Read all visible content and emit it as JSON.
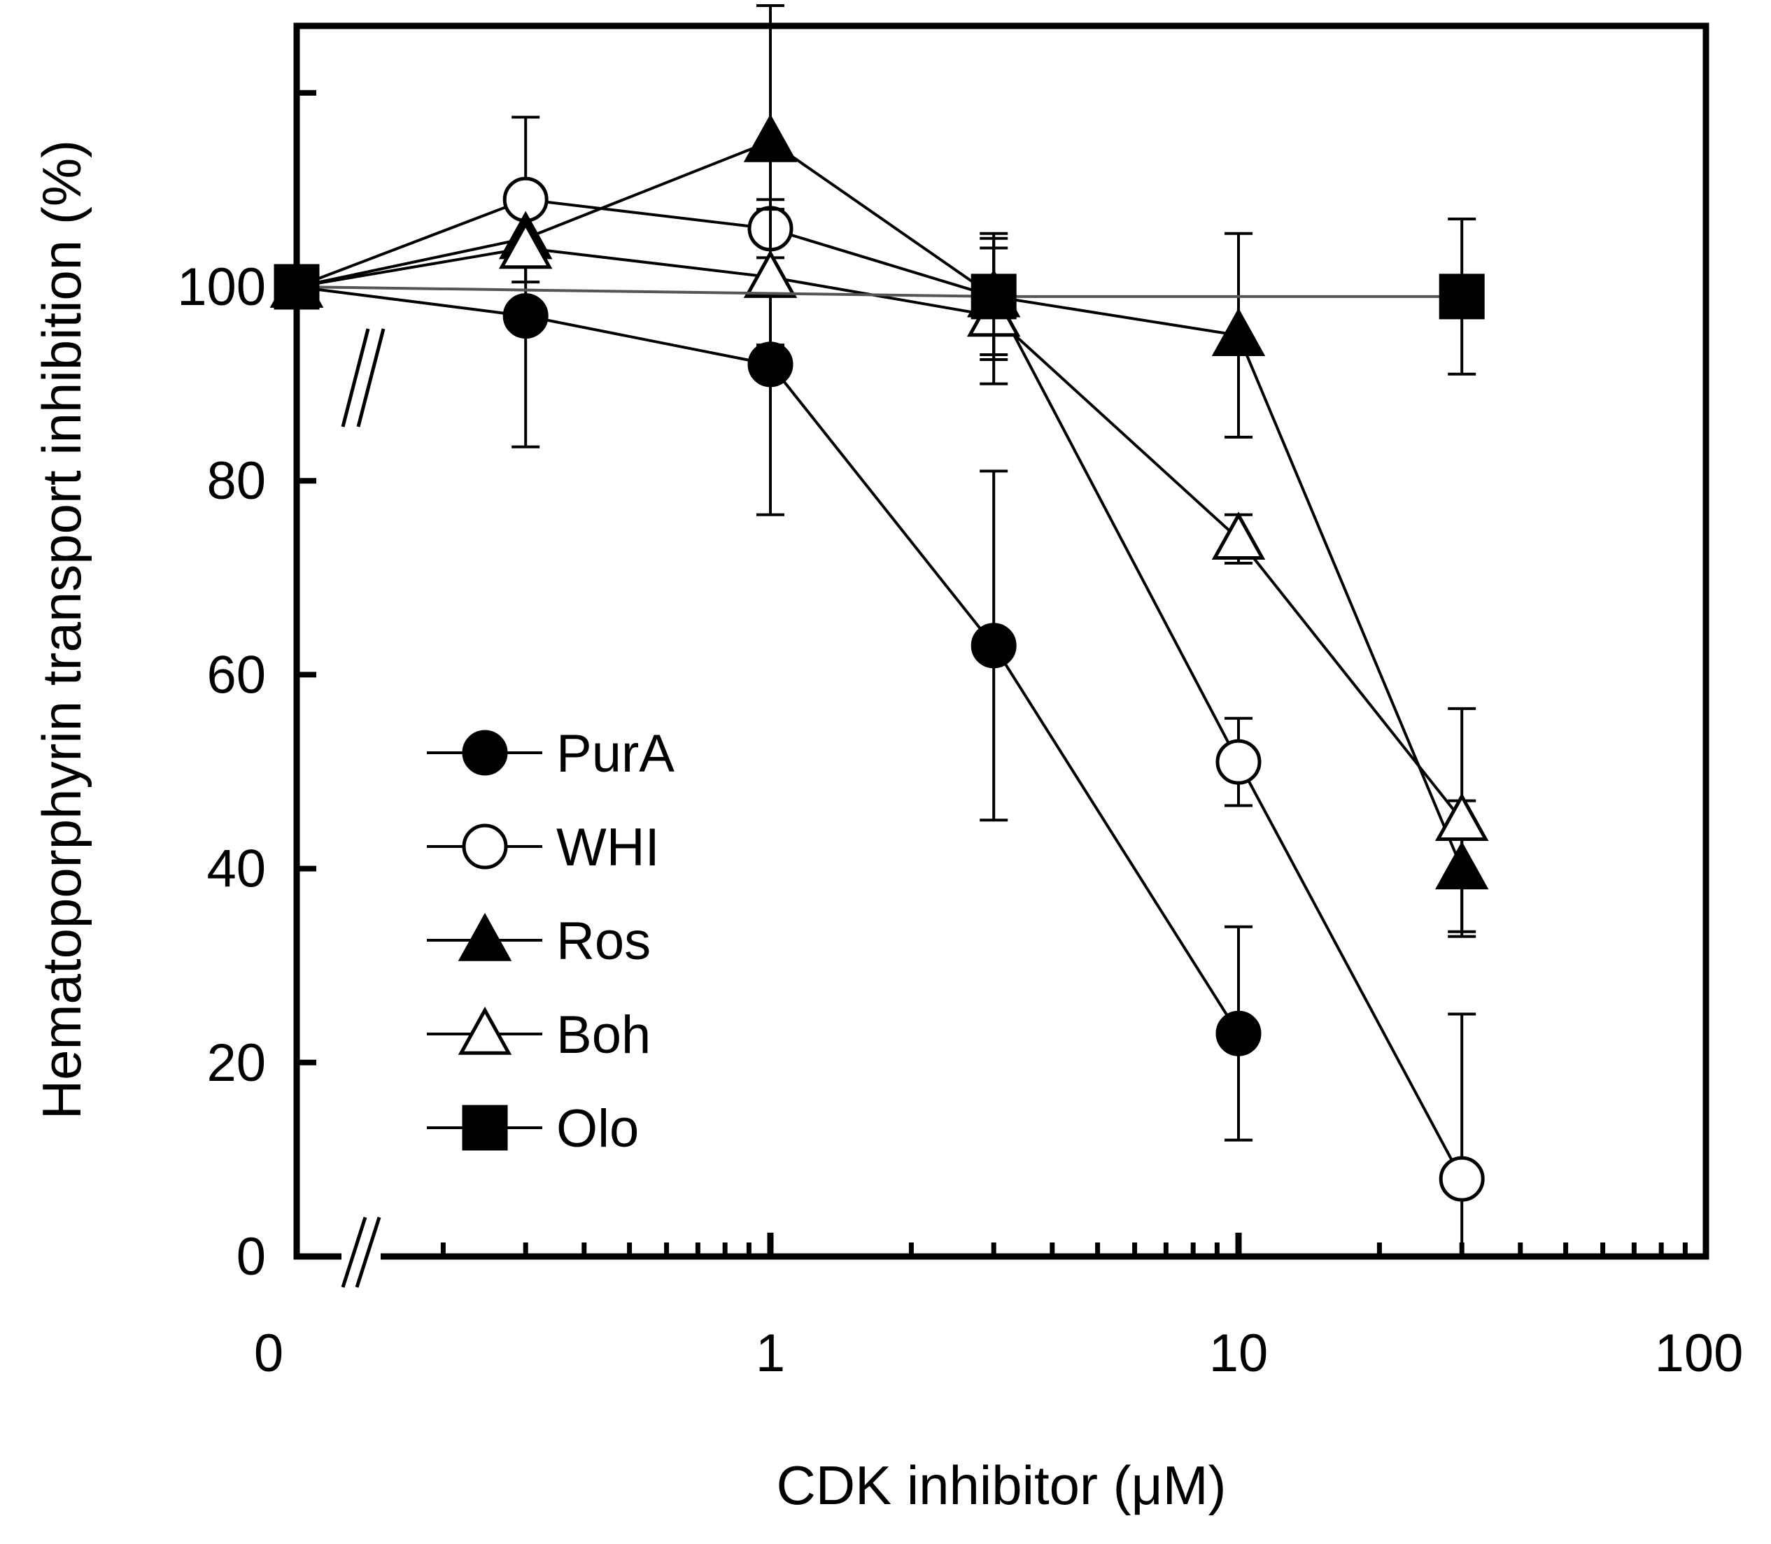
{
  "chart_data": {
    "type": "line",
    "xlabel": "CDK inhibitor (μM)",
    "ylabel": "Hematoporphyrin transport inhibition (%)",
    "xscale": "log",
    "xlim": [
      0.1,
      100
    ],
    "ylim": [
      0,
      125
    ],
    "x_ticklabels": [
      "0",
      "1",
      "10",
      "100"
    ],
    "y_ticklabels": [
      "0",
      "20",
      "40",
      "60",
      "80",
      "100"
    ],
    "y_ticks": [
      0,
      20,
      40,
      60,
      80,
      100,
      120
    ],
    "axis_break": "between 0 and first concentration (broken x axis)",
    "legend_position": "center-left",
    "series": [
      {
        "name": "PurA",
        "marker": "circle-filled",
        "points": [
          {
            "x": 0,
            "y": 100,
            "err": 0
          },
          {
            "x": 0.3,
            "y": 97,
            "err": 13.5
          },
          {
            "x": 1,
            "y": 92,
            "err": 15.5
          },
          {
            "x": 3,
            "y": 63,
            "err": 18
          },
          {
            "x": 10,
            "y": 23,
            "err": 11
          }
        ]
      },
      {
        "name": "WHI",
        "marker": "circle-open",
        "points": [
          {
            "x": 0,
            "y": 100,
            "err": 0
          },
          {
            "x": 0.3,
            "y": 109,
            "err": 8.5
          },
          {
            "x": 1,
            "y": 106,
            "err": 3
          },
          {
            "x": 3,
            "y": 99,
            "err": 6
          },
          {
            "x": 10,
            "y": 51,
            "err": 4.5
          },
          {
            "x": 30,
            "y": 8,
            "err": 17
          }
        ]
      },
      {
        "name": "Ros",
        "marker": "triangle-filled",
        "points": [
          {
            "x": 0,
            "y": 100,
            "err": 0
          },
          {
            "x": 0.3,
            "y": 105,
            "err": 0
          },
          {
            "x": 1,
            "y": 115,
            "err": 14
          },
          {
            "x": 3,
            "y": 99,
            "err": 0
          },
          {
            "x": 10,
            "y": 95,
            "err": 10.5
          },
          {
            "x": 30,
            "y": 40,
            "err": 7
          }
        ]
      },
      {
        "name": "Boh",
        "marker": "triangle-open",
        "points": [
          {
            "x": 0,
            "y": 100,
            "err": 0
          },
          {
            "x": 0.3,
            "y": 104,
            "err": 0
          },
          {
            "x": 1,
            "y": 101,
            "err": 7
          },
          {
            "x": 3,
            "y": 97,
            "err": 7
          },
          {
            "x": 10,
            "y": 74,
            "err": 2.5
          },
          {
            "x": 30,
            "y": 45,
            "err": 11.5
          }
        ]
      },
      {
        "name": "Olo",
        "marker": "square-filled",
        "points": [
          {
            "x": 0,
            "y": 100,
            "err": 0
          },
          {
            "x": 3,
            "y": 99,
            "err": 6.5
          },
          {
            "x": 30,
            "y": 99,
            "err": 8
          }
        ]
      }
    ]
  }
}
